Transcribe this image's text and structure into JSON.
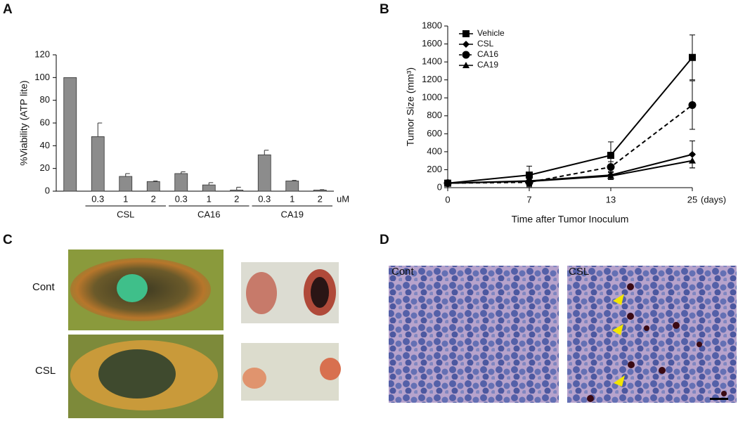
{
  "panel_labels": [
    "A",
    "B",
    "C",
    "D"
  ],
  "chart_data": [
    {
      "type": "bar",
      "ylabel": "%Viability (ATP lite)",
      "categories": [
        null,
        "0.3",
        "1",
        "2",
        "0.3",
        "1",
        "2",
        "0.3",
        "1",
        "2"
      ],
      "groups": [
        "CSL",
        "CA16",
        "CA19"
      ],
      "x_unit": "uM",
      "values": [
        100,
        48,
        13,
        8.5,
        15.5,
        5.5,
        1,
        32,
        9,
        1
      ],
      "errors": [
        0,
        12,
        2.5,
        0.5,
        1.5,
        2,
        2.5,
        4,
        0.5,
        0.3
      ],
      "color": "#8c8c8c",
      "ylim": [
        0,
        120
      ],
      "yticks": [
        0,
        20,
        40,
        60,
        80,
        100,
        120
      ]
    },
    {
      "type": "line",
      "ylabel": "Tumor Size (mm³)",
      "xlabel": "Time after Tumor Inoculum",
      "categories": [
        "0",
        "7",
        "13",
        "25"
      ],
      "x_unit": "(days)",
      "ylim": [
        0,
        1800
      ],
      "yticks": [
        0,
        200,
        400,
        600,
        800,
        1000,
        1200,
        1400,
        1600,
        1800
      ],
      "legend": "upper-left",
      "series": [
        {
          "name": "Vehicle",
          "color": "#000000",
          "marker": "square",
          "dash": false,
          "values": [
            50,
            140,
            360,
            1450
          ],
          "errors": [
            20,
            100,
            150,
            250
          ]
        },
        {
          "name": "CSL",
          "color": "#000000",
          "marker": "diamond",
          "dash": false,
          "values": [
            50,
            75,
            140,
            370
          ],
          "errors": [
            20,
            50,
            40,
            150
          ]
        },
        {
          "name": "CA16",
          "color": "#000000",
          "marker": "circle",
          "dash": true,
          "values": [
            50,
            60,
            230,
            920
          ],
          "errors": [
            20,
            40,
            60,
            270
          ]
        },
        {
          "name": "CA19",
          "color": "#000000",
          "marker": "triangle",
          "dash": false,
          "values": [
            50,
            70,
            130,
            300
          ],
          "errors": [
            20,
            60,
            40,
            80
          ]
        }
      ]
    }
  ],
  "panel_c": {
    "row_labels": [
      "Cont",
      "CSL"
    ]
  },
  "panel_d": {
    "image_labels": [
      "Cont",
      "CSL"
    ]
  }
}
